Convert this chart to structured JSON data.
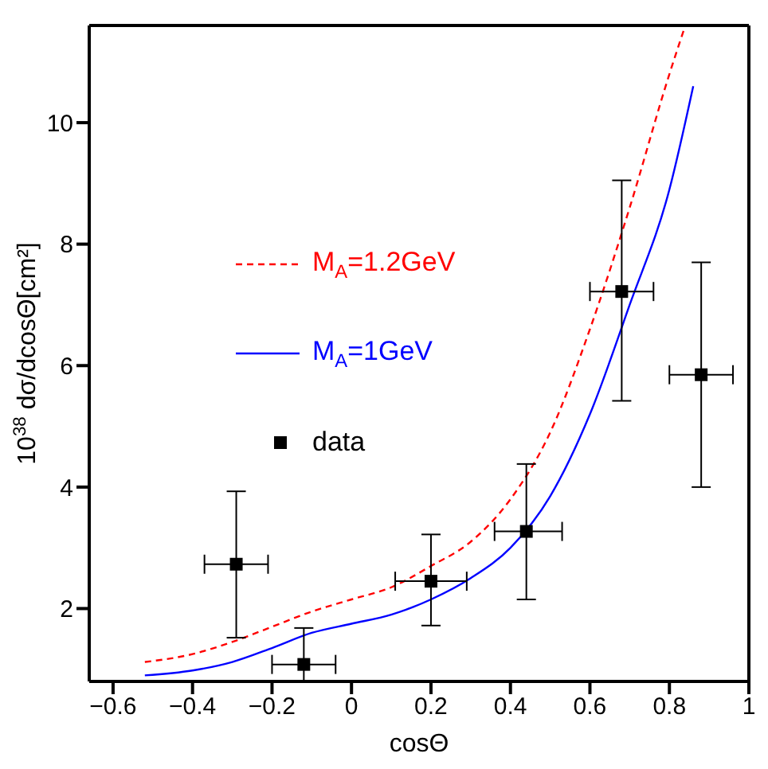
{
  "chart_data": {
    "type": "line",
    "xlabel": "cosΘ",
    "ylabel": "10$^{38}$ dσ/dcosΘ[cm²]",
    "xlim": [
      -0.66,
      1.0
    ],
    "ylim": [
      0.8,
      11.6
    ],
    "xticks": [
      {
        "value": -0.6,
        "label": "−0.6"
      },
      {
        "value": -0.4,
        "label": "−0.4"
      },
      {
        "value": -0.2,
        "label": "−0.2"
      },
      0,
      0.2,
      0.4,
      0.6,
      0.8,
      1
    ],
    "yticks": [
      2,
      4,
      6,
      8,
      10
    ],
    "legend": "left",
    "series": [
      {
        "name": "M$_{A}$=1.2GeV",
        "color": "#ff0000",
        "line_style": "dashed",
        "marker": "none",
        "x": [
          -0.52,
          -0.4,
          -0.3,
          -0.2,
          -0.1,
          0,
          0.1,
          0.2,
          0.3,
          0.4,
          0.5,
          0.6,
          0.7,
          0.8,
          0.84
        ],
        "values": [
          1.12,
          1.25,
          1.45,
          1.7,
          1.95,
          2.15,
          2.35,
          2.7,
          3.1,
          3.8,
          4.9,
          6.6,
          8.6,
          10.8,
          11.6
        ]
      },
      {
        "name": "M$_{A}$=1GeV",
        "color": "#0000ff",
        "line_style": "solid",
        "marker": "none",
        "x": [
          -0.52,
          -0.4,
          -0.3,
          -0.2,
          -0.1,
          0,
          0.1,
          0.2,
          0.3,
          0.4,
          0.5,
          0.6,
          0.7,
          0.8,
          0.86
        ],
        "values": [
          0.9,
          0.98,
          1.12,
          1.35,
          1.6,
          1.75,
          1.9,
          2.15,
          2.5,
          3.0,
          3.85,
          5.2,
          7.0,
          8.9,
          10.6
        ]
      },
      {
        "name": "data",
        "type": "scatter",
        "color": "#000000",
        "marker": "square",
        "x": [
          -0.29,
          -0.12,
          0.2,
          0.44,
          0.68,
          0.88
        ],
        "values": [
          2.73,
          1.08,
          2.45,
          3.27,
          7.22,
          5.85
        ],
        "errors": [
          [
            1.52,
            3.93
          ],
          [
            0.8,
            1.68
          ],
          [
            1.72,
            3.22
          ],
          [
            2.15,
            4.38
          ],
          [
            5.42,
            9.05
          ],
          [
            4.0,
            7.7
          ]
        ],
        "xerrors": [
          [
            -0.37,
            -0.21
          ],
          [
            -0.2,
            -0.04
          ],
          [
            0.11,
            0.29
          ],
          [
            0.36,
            0.53
          ],
          [
            0.6,
            0.76
          ],
          [
            0.8,
            0.96
          ]
        ]
      }
    ]
  }
}
